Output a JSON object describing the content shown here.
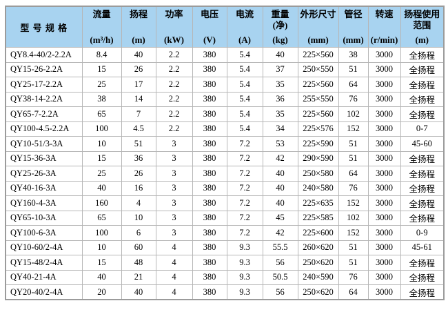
{
  "page": {
    "background": "#ffffff"
  },
  "table": {
    "header_bg": "#a8d3f0",
    "inner_border_color": "#b6b6b6",
    "outer_border_color": "#9b9b9b",
    "text_color": "#000000",
    "columns": [
      {
        "title_lines": [
          "型 号 规 格"
        ],
        "unit": ""
      },
      {
        "title_lines": [
          "流量"
        ],
        "unit": "(m³/h)"
      },
      {
        "title_lines": [
          "扬程"
        ],
        "unit": "(m)"
      },
      {
        "title_lines": [
          "功率"
        ],
        "unit": "(kW)"
      },
      {
        "title_lines": [
          "电压"
        ],
        "unit": "(V)"
      },
      {
        "title_lines": [
          "电流"
        ],
        "unit": "(A)"
      },
      {
        "title_lines": [
          "重量",
          "(净)"
        ],
        "unit": "(kg)"
      },
      {
        "title_lines": [
          "外形尺寸"
        ],
        "unit": "(mm)"
      },
      {
        "title_lines": [
          "管径"
        ],
        "unit": "(mm)"
      },
      {
        "title_lines": [
          "转速"
        ],
        "unit": "(r/min)"
      },
      {
        "title_lines": [
          "扬程使用",
          "范围"
        ],
        "unit": "(m)"
      }
    ],
    "rows": [
      [
        "QY8.4-40/2-2.2A",
        "8.4",
        "40",
        "2.2",
        "380",
        "5.4",
        "40",
        "225×560",
        "38",
        "3000",
        "全扬程"
      ],
      [
        "QY15-26-2.2A",
        "15",
        "26",
        "2.2",
        "380",
        "5.4",
        "37",
        "250×550",
        "51",
        "3000",
        "全扬程"
      ],
      [
        "QY25-17-2.2A",
        "25",
        "17",
        "2.2",
        "380",
        "5.4",
        "35",
        "225×560",
        "64",
        "3000",
        "全扬程"
      ],
      [
        "QY38-14-2.2A",
        "38",
        "14",
        "2.2",
        "380",
        "5.4",
        "36",
        "255×550",
        "76",
        "3000",
        "全扬程"
      ],
      [
        "QY65-7-2.2A",
        "65",
        "7",
        "2.2",
        "380",
        "5.4",
        "35",
        "225×560",
        "102",
        "3000",
        "全扬程"
      ],
      [
        "QY100-4.5-2.2A",
        "100",
        "4.5",
        "2.2",
        "380",
        "5.4",
        "34",
        "225×576",
        "152",
        "3000",
        "0-7"
      ],
      [
        "QY10-51/3-3A",
        "10",
        "51",
        "3",
        "380",
        "7.2",
        "53",
        "225×590",
        "51",
        "3000",
        "45-60"
      ],
      [
        "QY15-36-3A",
        "15",
        "36",
        "3",
        "380",
        "7.2",
        "42",
        "290×590",
        "51",
        "3000",
        "全扬程"
      ],
      [
        "QY25-26-3A",
        "25",
        "26",
        "3",
        "380",
        "7.2",
        "40",
        "250×580",
        "64",
        "3000",
        "全扬程"
      ],
      [
        "QY40-16-3A",
        "40",
        "16",
        "3",
        "380",
        "7.2",
        "40",
        "240×580",
        "76",
        "3000",
        "全扬程"
      ],
      [
        "QY160-4-3A",
        "160",
        "4",
        "3",
        "380",
        "7.2",
        "40",
        "225×635",
        "152",
        "3000",
        "全扬程"
      ],
      [
        "QY65-10-3A",
        "65",
        "10",
        "3",
        "380",
        "7.2",
        "45",
        "225×585",
        "102",
        "3000",
        "全扬程"
      ],
      [
        "QY100-6-3A",
        "100",
        "6",
        "3",
        "380",
        "7.2",
        "42",
        "225×600",
        "152",
        "3000",
        "0-9"
      ],
      [
        "QY10-60/2-4A",
        "10",
        "60",
        "4",
        "380",
        "9.3",
        "55.5",
        "260×620",
        "51",
        "3000",
        "45-61"
      ],
      [
        "QY15-48/2-4A",
        "15",
        "48",
        "4",
        "380",
        "9.3",
        "56",
        "250×620",
        "51",
        "3000",
        "全扬程"
      ],
      [
        "QY40-21-4A",
        "40",
        "21",
        "4",
        "380",
        "9.3",
        "50.5",
        "240×590",
        "76",
        "3000",
        "全扬程"
      ],
      [
        "QY20-40/2-4A",
        "20",
        "40",
        "4",
        "380",
        "9.3",
        "56",
        "250×620",
        "64",
        "3000",
        "全扬程"
      ]
    ]
  }
}
